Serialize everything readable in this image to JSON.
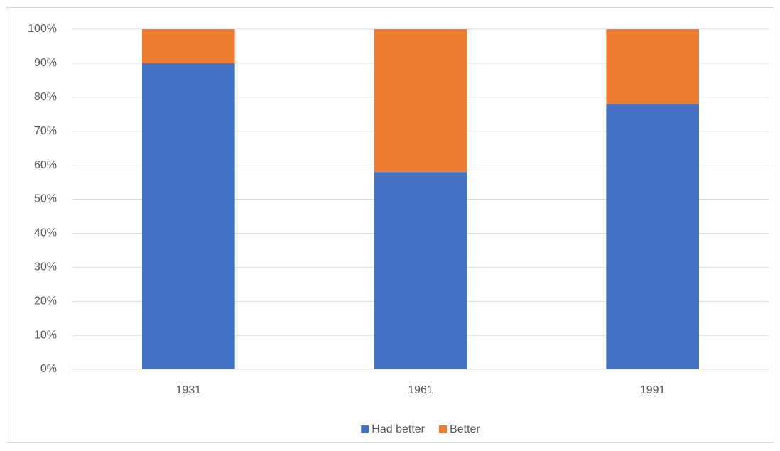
{
  "chart_data": {
    "type": "bar",
    "stacked": true,
    "categories": [
      "1931",
      "1961",
      "1991"
    ],
    "series": [
      {
        "name": "Had better",
        "color": "#4472c4",
        "values": [
          90,
          58,
          78
        ]
      },
      {
        "name": "Better",
        "color": "#ed7d31",
        "values": [
          10,
          42,
          22
        ]
      }
    ],
    "ylim": [
      0,
      100
    ],
    "yticks": [
      {
        "value": 0,
        "label": "0%"
      },
      {
        "value": 10,
        "label": "10%"
      },
      {
        "value": 20,
        "label": "20%"
      },
      {
        "value": 30,
        "label": "30%"
      },
      {
        "value": 40,
        "label": "40%"
      },
      {
        "value": 50,
        "label": "50%"
      },
      {
        "value": 60,
        "label": "60%"
      },
      {
        "value": 70,
        "label": "70%"
      },
      {
        "value": 80,
        "label": "80%"
      },
      {
        "value": 90,
        "label": "90%"
      },
      {
        "value": 100,
        "label": "100%"
      }
    ],
    "grid": true,
    "legend": "bottom"
  }
}
